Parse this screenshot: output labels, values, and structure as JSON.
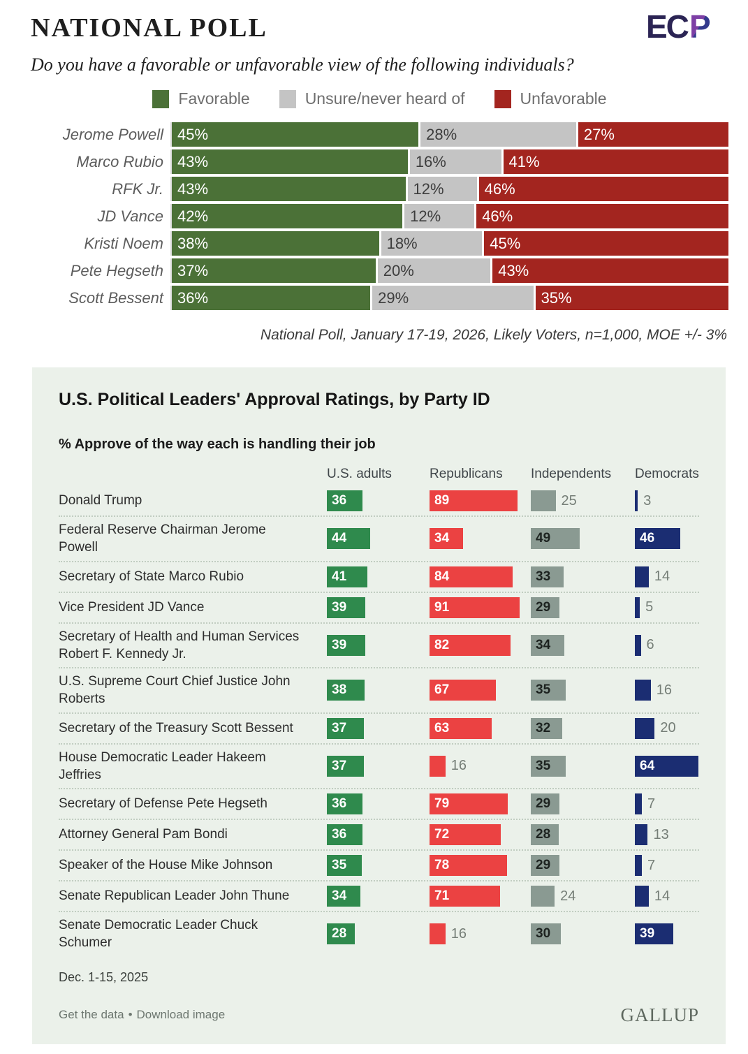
{
  "chart_data": [
    {
      "type": "bar",
      "variant": "stacked-horizontal",
      "title": "NATIONAL POLL",
      "logo": "ECP",
      "question": "Do you have a favorable or unfavorable view of the following individuals?",
      "categories": [
        "Jerome Powell",
        "Marco Rubio",
        "RFK Jr.",
        "JD Vance",
        "Kristi Noem",
        "Pete Hegseth",
        "Scott Bessent"
      ],
      "series": [
        {
          "name": "Favorable",
          "color": "#4b7137",
          "values": [
            45,
            43,
            43,
            42,
            38,
            37,
            36
          ]
        },
        {
          "name": "Unsure/never heard of",
          "color": "#c4c4c4",
          "values": [
            28,
            16,
            12,
            12,
            18,
            20,
            29
          ]
        },
        {
          "name": "Unfavorable",
          "color": "#a3251f",
          "values": [
            27,
            41,
            46,
            46,
            45,
            43,
            35
          ]
        }
      ],
      "value_suffix": "%",
      "legend_position": "top",
      "xlim": [
        0,
        100
      ],
      "footnote": "National Poll, January 17-19, 2026, Likely Voters, n=1,000, MOE +/- 3%"
    },
    {
      "type": "bar",
      "variant": "horizontal-small-multiples",
      "title": "U.S. Political Leaders' Approval Ratings, by Party ID",
      "subtitle": "% Approve of the way each is handling their job",
      "categories": [
        "Donald Trump",
        "Federal Reserve Chairman Jerome\nPowell",
        "Secretary of State Marco Rubio",
        "Vice President JD Vance",
        "Secretary of Health and Human Services\nRobert F. Kennedy Jr.",
        "U.S. Supreme Court Chief Justice John\nRoberts",
        "Secretary of the Treasury Scott Bessent",
        "House Democratic Leader Hakeem\nJeffries",
        "Secretary of Defense Pete Hegseth",
        "Attorney General Pam Bondi",
        "Speaker of the House Mike Johnson",
        "Senate Republican Leader John Thune",
        "Senate Democratic Leader Chuck\nSchumer"
      ],
      "series": [
        {
          "name": "U.S. adults",
          "color": "#2f8a4d",
          "values": [
            36,
            44,
            41,
            39,
            39,
            38,
            37,
            37,
            36,
            36,
            35,
            34,
            28
          ]
        },
        {
          "name": "Republicans",
          "color": "#eb4242",
          "values": [
            89,
            34,
            84,
            91,
            82,
            67,
            63,
            16,
            79,
            72,
            78,
            71,
            16
          ]
        },
        {
          "name": "Independents",
          "color": "#8a9a92",
          "values": [
            25,
            49,
            33,
            29,
            34,
            35,
            32,
            35,
            29,
            28,
            29,
            24,
            30
          ]
        },
        {
          "name": "Democrats",
          "color": "#1b2d72",
          "values": [
            3,
            46,
            14,
            5,
            6,
            16,
            20,
            64,
            7,
            13,
            7,
            14,
            39
          ]
        }
      ],
      "xlim": [
        0,
        100
      ],
      "date_note": "Dec. 1-15, 2025",
      "footer_links": [
        "Get the data",
        "Download image"
      ],
      "links_separator": "•",
      "brand": "GALLUP"
    }
  ]
}
